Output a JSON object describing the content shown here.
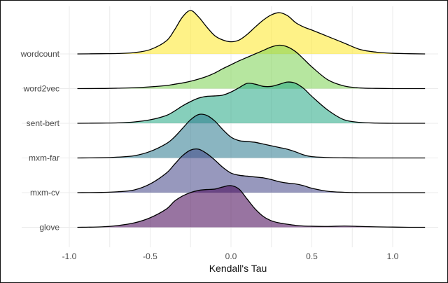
{
  "chart_data": {
    "type": "ridgeline",
    "xlabel": "Kendall's Tau",
    "ylabel": "",
    "xlim": [
      -1.0,
      1.2
    ],
    "x_ticks": [
      -1.0,
      -0.5,
      0.0,
      0.5,
      1.0
    ],
    "x_tick_labels": [
      "-1.0",
      "-0.5",
      "0.0",
      "0.5",
      "1.0"
    ],
    "grid": true,
    "density_x": [
      -0.95,
      -0.8,
      -0.7,
      -0.6,
      -0.5,
      -0.4,
      -0.35,
      -0.3,
      -0.25,
      -0.2,
      -0.15,
      -0.1,
      -0.05,
      0.0,
      0.05,
      0.1,
      0.15,
      0.2,
      0.25,
      0.3,
      0.35,
      0.4,
      0.45,
      0.5,
      0.6,
      0.7,
      0.8,
      0.9,
      1.0,
      1.1,
      1.2
    ],
    "series": [
      {
        "name": "wordcount",
        "color": "#fde725",
        "density": [
          0,
          0.005,
          0.01,
          0.03,
          0.1,
          0.3,
          0.55,
          0.85,
          1.0,
          0.85,
          0.62,
          0.42,
          0.32,
          0.28,
          0.32,
          0.45,
          0.62,
          0.78,
          0.9,
          0.95,
          0.88,
          0.72,
          0.62,
          0.55,
          0.4,
          0.25,
          0.1,
          0.04,
          0.015,
          0.005,
          0
        ]
      },
      {
        "name": "word2vec",
        "color": "#7ad151",
        "density": [
          0,
          0.003,
          0.01,
          0.02,
          0.04,
          0.07,
          0.1,
          0.13,
          0.17,
          0.22,
          0.28,
          0.36,
          0.46,
          0.55,
          0.64,
          0.72,
          0.8,
          0.88,
          0.96,
          1.0,
          0.96,
          0.85,
          0.68,
          0.5,
          0.2,
          0.06,
          0.015,
          0.005,
          0,
          0,
          0
        ]
      },
      {
        "name": "sent-bert",
        "color": "#22a884",
        "density": [
          0,
          0.005,
          0.01,
          0.03,
          0.08,
          0.18,
          0.28,
          0.4,
          0.5,
          0.58,
          0.62,
          0.63,
          0.65,
          0.72,
          0.82,
          0.92,
          0.9,
          0.85,
          0.85,
          0.9,
          0.95,
          0.92,
          0.8,
          0.62,
          0.3,
          0.08,
          0.02,
          0.005,
          0,
          0,
          0
        ]
      },
      {
        "name": "mxm-far",
        "color": "#2a788e",
        "density": [
          0,
          0.005,
          0.02,
          0.05,
          0.15,
          0.33,
          0.48,
          0.68,
          0.88,
          1.0,
          0.98,
          0.85,
          0.65,
          0.48,
          0.4,
          0.38,
          0.36,
          0.32,
          0.28,
          0.24,
          0.2,
          0.14,
          0.07,
          0.03,
          0.01,
          0.003,
          0,
          0,
          0,
          0,
          0
        ]
      },
      {
        "name": "mxm-cv",
        "color": "#414487",
        "density": [
          0,
          0.005,
          0.02,
          0.06,
          0.2,
          0.45,
          0.65,
          0.85,
          0.98,
          1.0,
          0.9,
          0.75,
          0.58,
          0.45,
          0.4,
          0.38,
          0.36,
          0.34,
          0.3,
          0.25,
          0.22,
          0.2,
          0.16,
          0.1,
          0.03,
          0.008,
          0,
          0,
          0,
          0,
          0
        ]
      },
      {
        "name": "glove",
        "color": "#440154",
        "density": [
          0,
          0.01,
          0.04,
          0.1,
          0.22,
          0.42,
          0.6,
          0.72,
          0.8,
          0.85,
          0.87,
          0.88,
          0.93,
          0.96,
          0.88,
          0.65,
          0.42,
          0.25,
          0.15,
          0.1,
          0.07,
          0.045,
          0.03,
          0.025,
          0.02,
          0.03,
          0.02,
          0.01,
          0.005,
          0,
          0
        ]
      }
    ]
  }
}
